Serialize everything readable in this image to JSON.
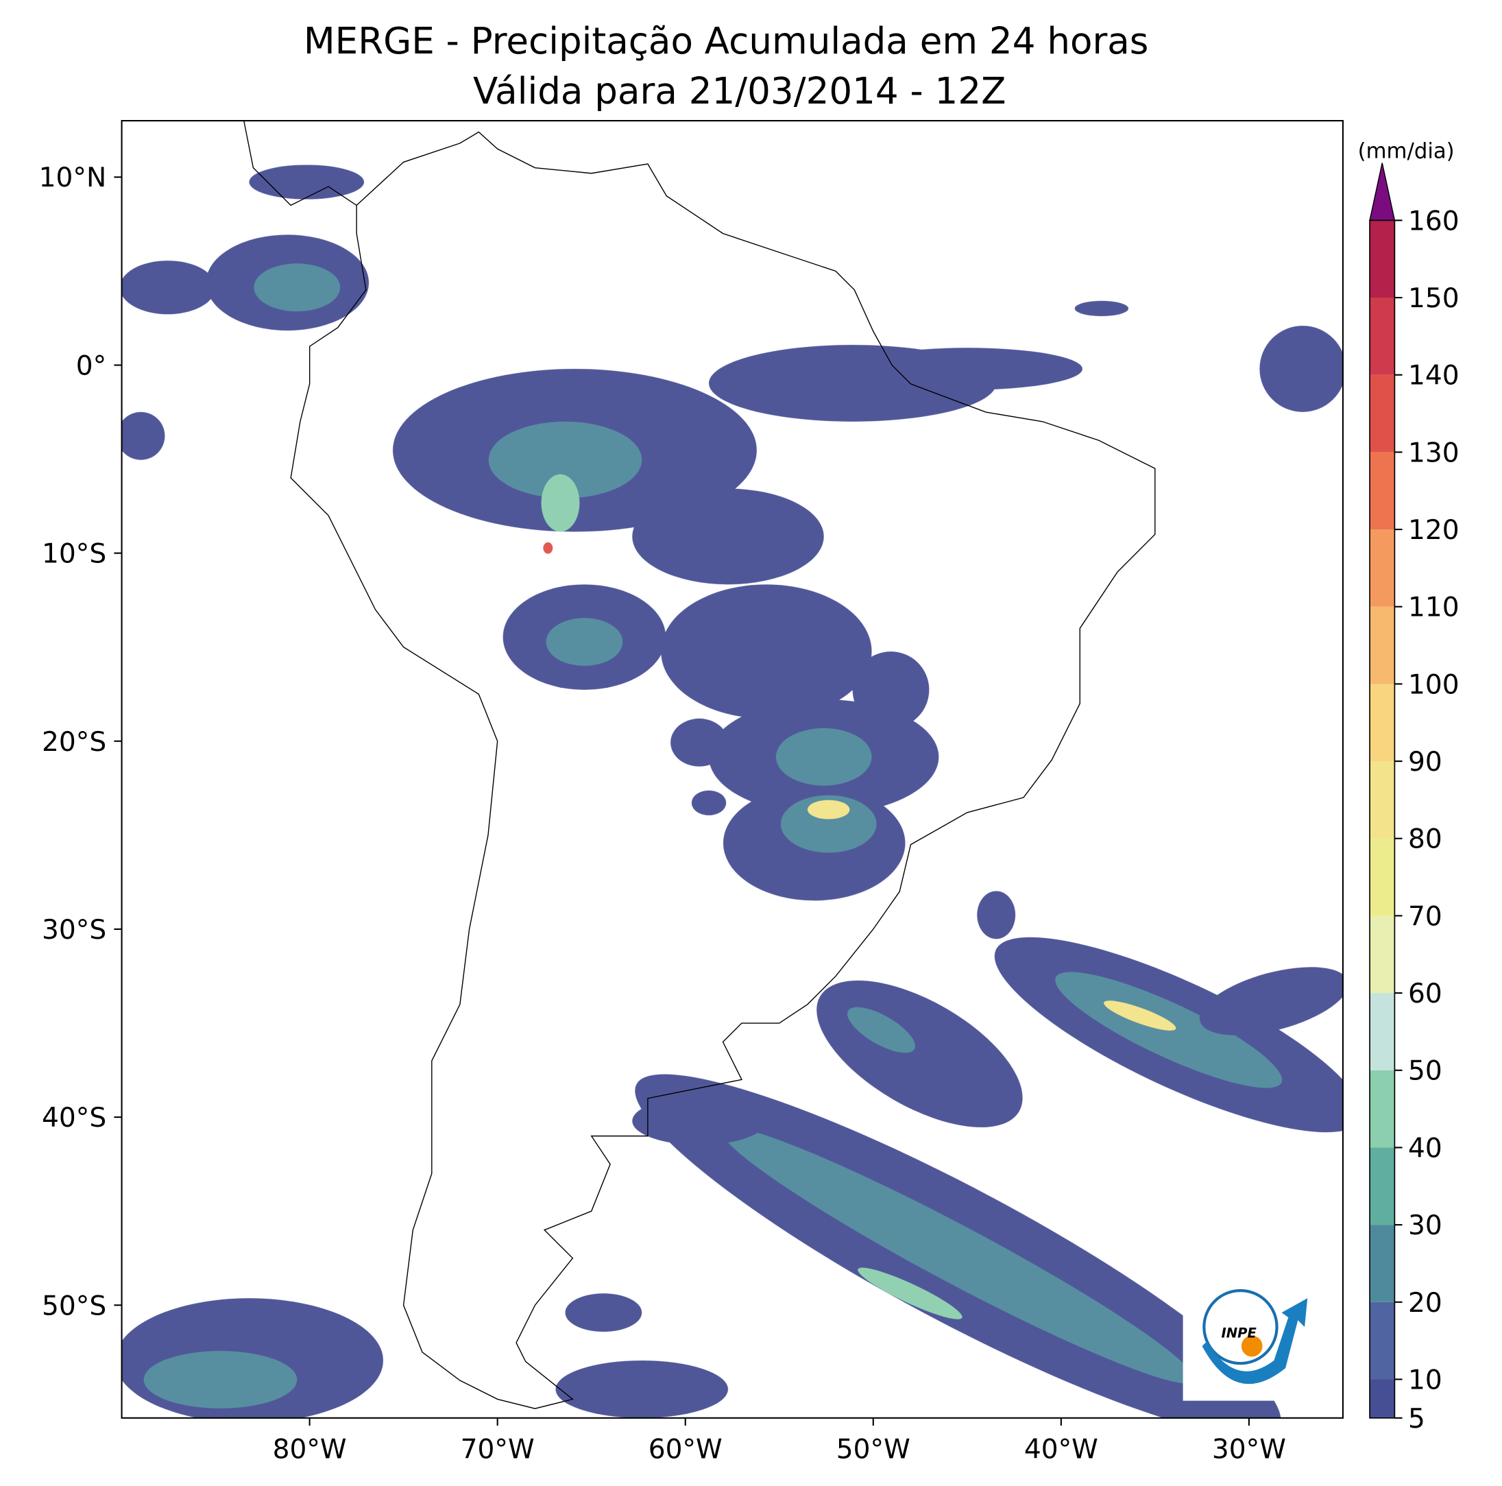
{
  "map": {
    "title": "MERGE - Precipitação Acumulada em 24 horas",
    "subtitle": "Válida para 21/03/2014 - 12Z",
    "xlim": [
      -90,
      -25
    ],
    "ylim": [
      -56,
      13
    ],
    "xticks": [
      {
        "value": -80,
        "label": "80°W"
      },
      {
        "value": -70,
        "label": "70°W"
      },
      {
        "value": -60,
        "label": "60°W"
      },
      {
        "value": -50,
        "label": "50°W"
      },
      {
        "value": -40,
        "label": "40°W"
      },
      {
        "value": -30,
        "label": "30°W"
      }
    ],
    "yticks": [
      {
        "value": 10,
        "label": "10°N"
      },
      {
        "value": 0,
        "label": "0°"
      },
      {
        "value": -10,
        "label": "10°S"
      },
      {
        "value": -20,
        "label": "20°S"
      },
      {
        "value": -30,
        "label": "30°S"
      },
      {
        "value": -40,
        "label": "40°S"
      },
      {
        "value": -50,
        "label": "50°S"
      }
    ],
    "colorbar": {
      "label": "(mm/dia)",
      "lim": [
        5,
        160
      ],
      "ticks": [
        5,
        10,
        20,
        30,
        40,
        50,
        60,
        70,
        80,
        90,
        100,
        110,
        120,
        130,
        140,
        150,
        160
      ],
      "colors": [
        "#474f94",
        "#4f64a0",
        "#4f8a9c",
        "#5fae9f",
        "#8ccfae",
        "#c4e3dc",
        "#e8efb0",
        "#ecec8c",
        "#f3e38a",
        "#f8d57e",
        "#f7b96d",
        "#f59a5f",
        "#ee7450",
        "#e05249",
        "#cf3a4c",
        "#b4214a"
      ],
      "extend_color": "#7b0c80"
    },
    "logo": "INPE"
  }
}
